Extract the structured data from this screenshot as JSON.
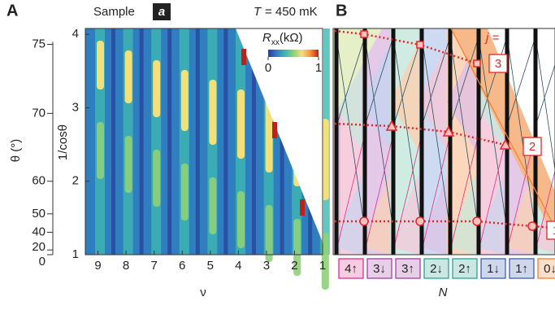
{
  "chart_data": [
    {
      "type": "heatmap",
      "panel_label": "A",
      "title": "Sample",
      "sample_badge": "a",
      "annotation_symbol": "T",
      "annotation": "= 450 mK",
      "x_label": "ν",
      "xlim": [
        9.45,
        1
      ],
      "xticks": [
        9,
        8,
        7,
        6,
        5,
        4,
        3,
        2,
        1
      ],
      "y_label": "1/cosθ",
      "ylim": [
        1,
        4.08
      ],
      "yticks": [
        1,
        2,
        3,
        4
      ],
      "y2_label": "θ (°)",
      "y2_scale": "inverse-cosine",
      "y2ticks": [
        0,
        20,
        40,
        50,
        60,
        70,
        75
      ],
      "colorbar_label": "R",
      "colorbar_label_subscript": "xx",
      "colorbar_label_unit": "(kΩ)",
      "colorbar_ticks": [
        0,
        1
      ],
      "colormap": [
        "#2a3a9a",
        "#2f7fc0",
        "#3fb6b0",
        "#8fd07a",
        "#f3e07a",
        "#f09a3a",
        "#c0201a"
      ]
    },
    {
      "type": "diagram",
      "panel_label": "B",
      "x_label": "N",
      "annotation": "j =",
      "series_labels": [
        "3",
        "2",
        "1"
      ],
      "categories": [
        "4↑",
        "3↓",
        "3↑",
        "2↓",
        "2↑",
        "1↓",
        "1↑",
        "0↓"
      ],
      "category_colors": [
        "#e0308a",
        "#a040a0",
        "#a040a0",
        "#30a090",
        "#30a090",
        "#4060b0",
        "#4060b0",
        "#f08030"
      ]
    }
  ]
}
